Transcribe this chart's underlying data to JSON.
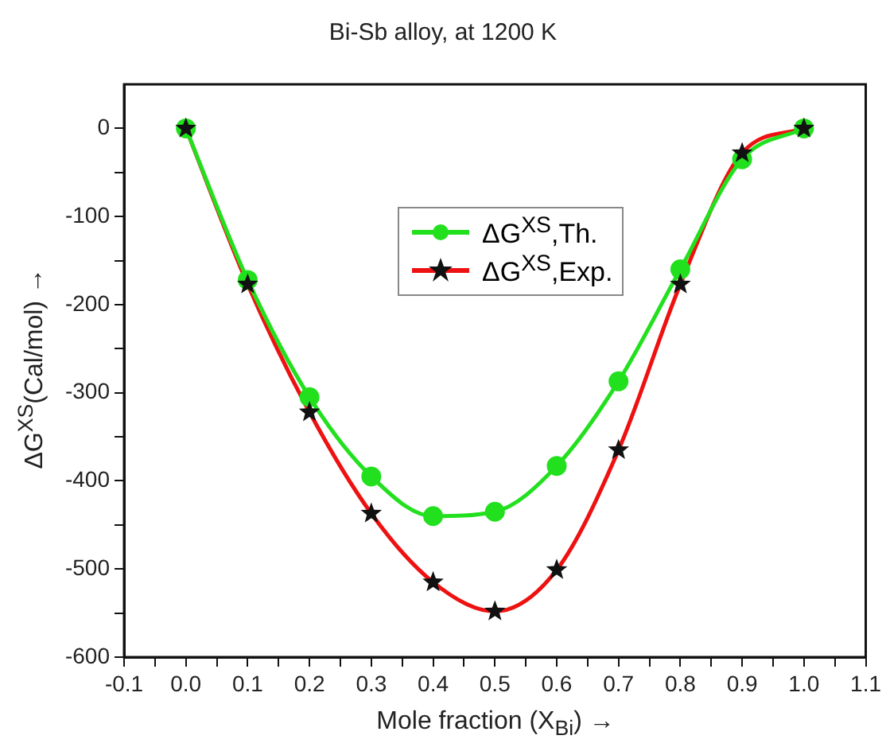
{
  "chart_data": {
    "type": "line",
    "title": "Bi-Sb alloy, at 1200 K",
    "xlabel": "Mole fraction (X$_{Bi}$) →",
    "ylabel": "ΔG$^{XS}$(Cal/mol) →",
    "x": [
      0,
      0.1,
      0.2,
      0.3,
      0.4,
      0.5,
      0.6,
      0.7,
      0.8,
      0.9,
      1.0
    ],
    "series": [
      {
        "name": "ΔG$^{XS}$,Th.",
        "color": "#22e01e",
        "marker": "circle",
        "values": [
          0,
          -172,
          -305,
          -395,
          -440,
          -435,
          -383,
          -287,
          -160,
          -35,
          0
        ]
      },
      {
        "name": "ΔG$^{XS}$,Exp.",
        "color": "#ee1111",
        "marker": "star",
        "values": [
          0,
          -177,
          -322,
          -437,
          -515,
          -548,
          -501,
          -365,
          -177,
          -28,
          0
        ]
      }
    ],
    "xlim": [
      -0.1,
      1.1
    ],
    "xticks": [
      -0.1,
      {
        "value": -0.05,
        "label": null
      },
      {
        "value": 0,
        "label": "0.0"
      },
      {
        "value": 0.05,
        "label": null
      },
      0.1,
      {
        "value": 0.15,
        "label": null
      },
      0.2,
      {
        "value": 0.25,
        "label": null
      },
      0.3,
      {
        "value": 0.35,
        "label": null
      },
      0.4,
      {
        "value": 0.45,
        "label": null
      },
      0.5,
      {
        "value": 0.55,
        "label": null
      },
      0.6,
      {
        "value": 0.65,
        "label": null
      },
      0.7,
      {
        "value": 0.75,
        "label": null
      },
      0.8,
      {
        "value": 0.85,
        "label": null
      },
      0.9,
      {
        "value": 0.95,
        "label": null
      },
      {
        "value": 1,
        "label": "1.0"
      },
      {
        "value": 1.05,
        "label": null
      },
      1.1
    ],
    "ylim": [
      -600,
      50
    ],
    "yticks": [
      -600,
      {
        "value": -550,
        "label": null
      },
      -500,
      {
        "value": -450,
        "label": null
      },
      -400,
      {
        "value": -350,
        "label": null
      },
      -300,
      {
        "value": -250,
        "label": null
      },
      -200,
      {
        "value": -150,
        "label": null
      },
      -100,
      {
        "value": -50,
        "label": null
      },
      0
    ],
    "grid": false,
    "legend": "center",
    "line_style": "solid"
  }
}
